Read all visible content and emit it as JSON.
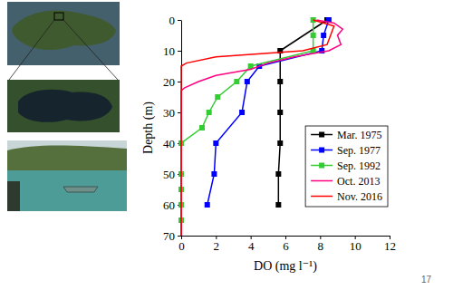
{
  "chart_data": {
    "type": "line",
    "x_label": "DO (mg l⁻¹)",
    "y_label": "Depth (m)",
    "xlim": [
      0,
      12
    ],
    "xticks": [
      0,
      2,
      4,
      6,
      8,
      10,
      12
    ],
    "ylim": [
      70,
      0
    ],
    "yticks": [
      0,
      10,
      20,
      30,
      40,
      50,
      60,
      70
    ],
    "legend": "lower right",
    "series": [
      {
        "name": "Mar. 1975",
        "color": "#000000",
        "marker": "square",
        "line_style": "solid",
        "x": [
          8.4,
          5.7,
          5.7,
          5.7,
          5.7,
          5.6,
          5.6
        ],
        "values": [
          0,
          10,
          20,
          30,
          40,
          50,
          60
        ]
      },
      {
        "name": "Sep. 1977",
        "color": "#0000ff",
        "marker": "square",
        "line_style": "solid",
        "x": [
          8.5,
          8.2,
          8.1,
          4.5,
          3.8,
          3.5,
          2.0,
          1.9,
          1.5
        ],
        "values": [
          0,
          5,
          10,
          15,
          20,
          30,
          40,
          50,
          60
        ]
      },
      {
        "name": "Sep. 1992",
        "color": "#33cc33",
        "marker": "square",
        "line_style": "solid",
        "x": [
          7.6,
          7.6,
          7.6,
          4.0,
          3.2,
          2.1,
          1.6,
          1.2,
          0,
          0,
          0,
          0,
          0
        ],
        "values": [
          0,
          5,
          10,
          15,
          20,
          25,
          30,
          35,
          40,
          50,
          55,
          60,
          65
        ]
      },
      {
        "name": "Oct. 2013",
        "color": "#ff0080",
        "marker": "none",
        "line_style": "solid",
        "x": [
          7.8,
          8.8,
          9.3,
          9.0,
          9.2,
          8.5,
          6.5,
          5.0,
          4.0,
          2.0,
          1.0,
          0.2,
          0,
          0
        ],
        "values": [
          0,
          1,
          3,
          5,
          8,
          10,
          12,
          14,
          16,
          18,
          20,
          22,
          23,
          70
        ]
      },
      {
        "name": "Nov. 2016",
        "color": "#ff0000",
        "marker": "none",
        "line_style": "solid",
        "x": [
          7.6,
          8.8,
          8.6,
          8.4,
          7.0,
          2.0,
          0.3,
          0,
          0
        ],
        "values": [
          0,
          2,
          5,
          8,
          10,
          12,
          14,
          15,
          70
        ]
      }
    ]
  },
  "page_number": "17"
}
